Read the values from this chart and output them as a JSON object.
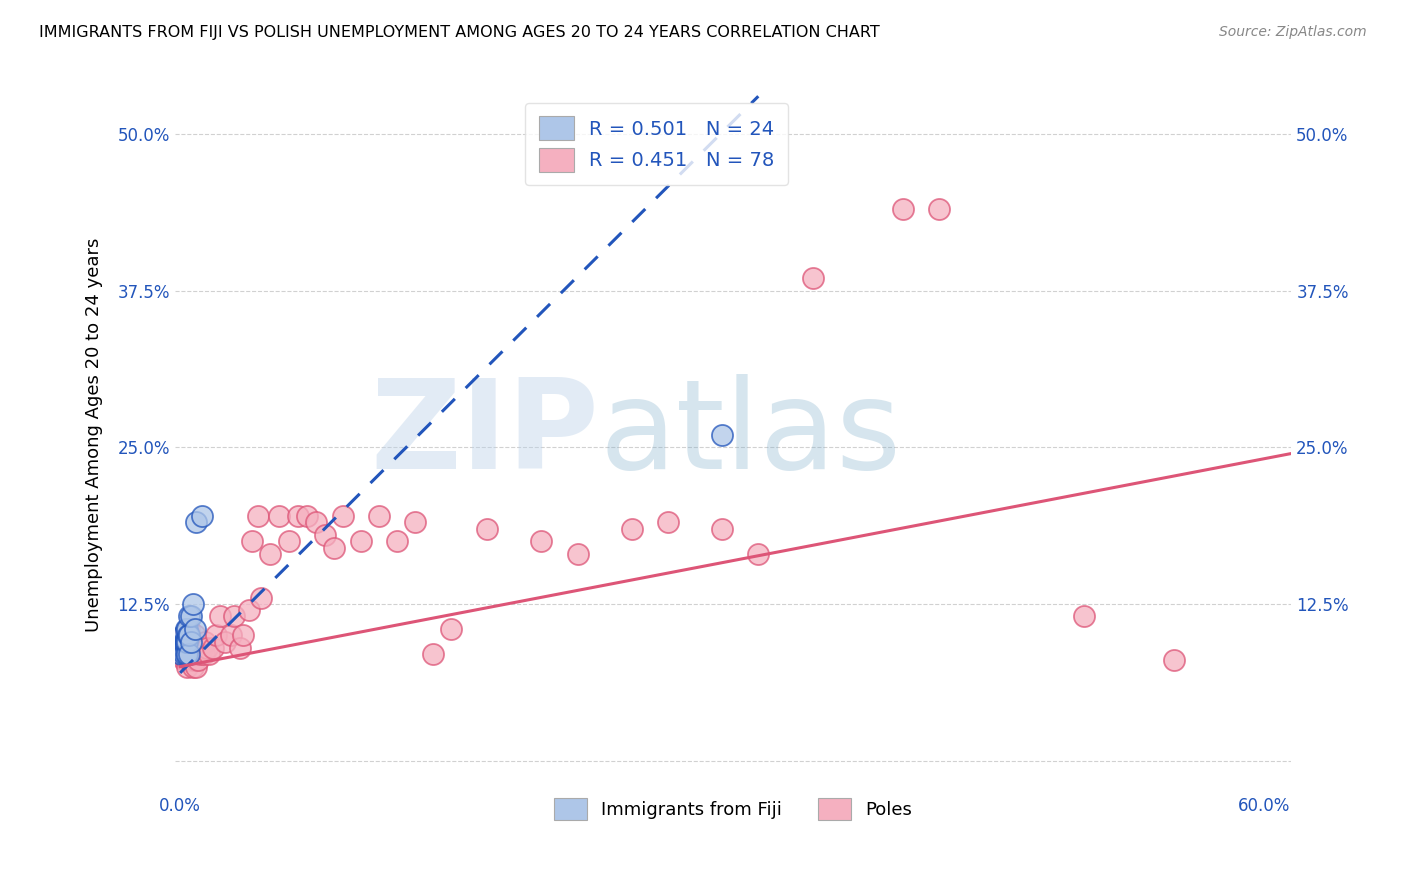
{
  "title": "IMMIGRANTS FROM FIJI VS POLISH UNEMPLOYMENT AMONG AGES 20 TO 24 YEARS CORRELATION CHART",
  "source": "Source: ZipAtlas.com",
  "ylabel": "Unemployment Among Ages 20 to 24 years",
  "xlim": [
    -0.003,
    0.615
  ],
  "ylim": [
    -0.025,
    0.545
  ],
  "xticks": [
    0.0,
    0.1,
    0.2,
    0.3,
    0.4,
    0.5,
    0.6
  ],
  "yticks": [
    0.0,
    0.125,
    0.25,
    0.375,
    0.5
  ],
  "ytick_labels": [
    "",
    "12.5%",
    "25.0%",
    "37.5%",
    "50.0%"
  ],
  "xtick_labels": [
    "0.0%",
    "",
    "",
    "",
    "",
    "",
    "60.0%"
  ],
  "fiji_R": 0.501,
  "fiji_N": 24,
  "poles_R": 0.451,
  "poles_N": 78,
  "fiji_color": "#aec6e8",
  "poles_color": "#f5b0c0",
  "fiji_line_color": "#2255bb",
  "poles_line_color": "#dd5577",
  "legend_text_color": "#2255bb",
  "fiji_x": [
    0.0005,
    0.001,
    0.0015,
    0.002,
    0.002,
    0.0025,
    0.003,
    0.003,
    0.003,
    0.0035,
    0.004,
    0.004,
    0.004,
    0.0045,
    0.005,
    0.005,
    0.005,
    0.006,
    0.006,
    0.007,
    0.008,
    0.009,
    0.012,
    0.3
  ],
  "fiji_y": [
    0.085,
    0.095,
    0.1,
    0.085,
    0.095,
    0.095,
    0.085,
    0.095,
    0.105,
    0.095,
    0.085,
    0.095,
    0.105,
    0.1,
    0.085,
    0.1,
    0.115,
    0.095,
    0.115,
    0.125,
    0.105,
    0.19,
    0.195,
    0.26
  ],
  "poles_x": [
    0.0005,
    0.001,
    0.001,
    0.0015,
    0.002,
    0.002,
    0.002,
    0.0025,
    0.003,
    0.003,
    0.003,
    0.003,
    0.004,
    0.004,
    0.004,
    0.004,
    0.005,
    0.005,
    0.005,
    0.005,
    0.006,
    0.006,
    0.006,
    0.007,
    0.007,
    0.007,
    0.008,
    0.008,
    0.008,
    0.009,
    0.009,
    0.01,
    0.01,
    0.011,
    0.012,
    0.013,
    0.014,
    0.015,
    0.016,
    0.018,
    0.02,
    0.022,
    0.025,
    0.028,
    0.03,
    0.033,
    0.035,
    0.038,
    0.04,
    0.043,
    0.045,
    0.05,
    0.055,
    0.06,
    0.065,
    0.07,
    0.075,
    0.08,
    0.085,
    0.09,
    0.1,
    0.11,
    0.12,
    0.13,
    0.14,
    0.15,
    0.17,
    0.2,
    0.22,
    0.25,
    0.27,
    0.3,
    0.32,
    0.35,
    0.4,
    0.42,
    0.5,
    0.55
  ],
  "poles_y": [
    0.085,
    0.085,
    0.095,
    0.095,
    0.08,
    0.09,
    0.1,
    0.085,
    0.08,
    0.085,
    0.095,
    0.1,
    0.075,
    0.085,
    0.095,
    0.1,
    0.08,
    0.085,
    0.095,
    0.105,
    0.08,
    0.085,
    0.095,
    0.075,
    0.085,
    0.095,
    0.08,
    0.085,
    0.1,
    0.075,
    0.09,
    0.08,
    0.09,
    0.085,
    0.09,
    0.085,
    0.095,
    0.09,
    0.085,
    0.09,
    0.1,
    0.115,
    0.095,
    0.1,
    0.115,
    0.09,
    0.1,
    0.12,
    0.175,
    0.195,
    0.13,
    0.165,
    0.195,
    0.175,
    0.195,
    0.195,
    0.19,
    0.18,
    0.17,
    0.195,
    0.175,
    0.195,
    0.175,
    0.19,
    0.085,
    0.105,
    0.185,
    0.175,
    0.165,
    0.185,
    0.19,
    0.185,
    0.165,
    0.385,
    0.44,
    0.44,
    0.115,
    0.08
  ],
  "fiji_trendline_x": [
    0.0,
    0.32
  ],
  "fiji_trendline_y": [
    0.07,
    0.53
  ],
  "poles_trendline_x": [
    0.0,
    0.615
  ],
  "poles_trendline_y": [
    0.075,
    0.245
  ]
}
